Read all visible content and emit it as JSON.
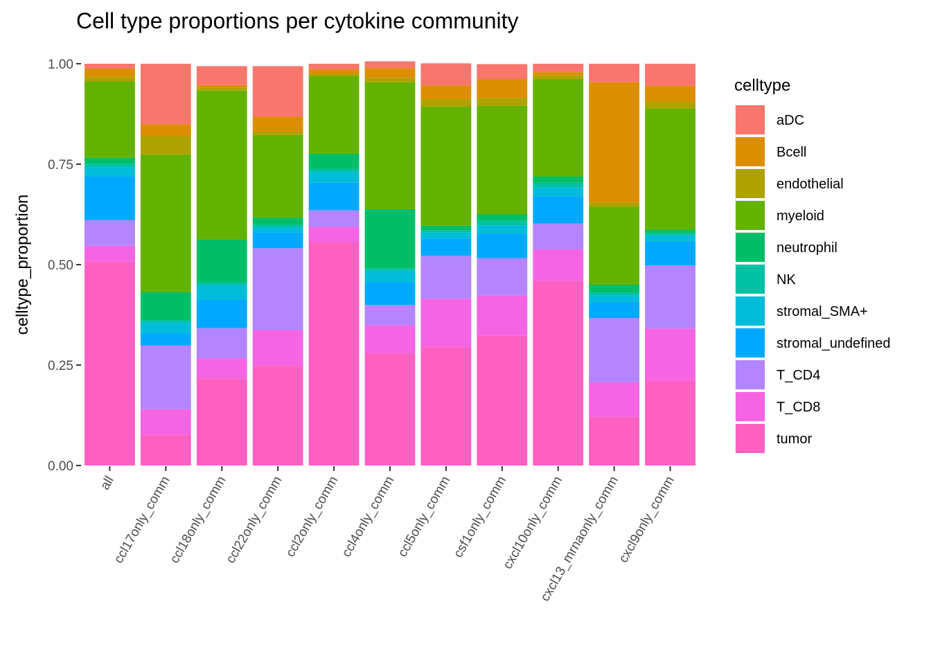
{
  "chart_data": {
    "type": "bar",
    "stacked": true,
    "title": "Cell type proportions per cytokine community",
    "xlabel": "",
    "ylabel": "celltype_proportion",
    "ylim": [
      0,
      1
    ],
    "yticks": [
      "0.00",
      "0.25",
      "0.50",
      "0.75",
      "1.00"
    ],
    "ytick_values": [
      0,
      0.25,
      0.5,
      0.75,
      1.0
    ],
    "grid": false,
    "legend_title": "celltype",
    "legend_position": "right",
    "categories": [
      "all",
      "ccl17only_comm",
      "ccl18only_comm",
      "ccl22only_comm",
      "ccl2only_comm",
      "ccl4only_comm",
      "ccl5only_comm",
      "csf1only_comm",
      "cxcl10only_comm",
      "cxcl13_mrnaonly_comm",
      "cxcl9only_comm"
    ],
    "series": [
      {
        "name": "tumor",
        "color": "#FF61C3",
        "values": [
          0.508,
          0.076,
          0.217,
          0.248,
          0.556,
          0.279,
          0.295,
          0.323,
          0.46,
          0.121,
          0.211
        ]
      },
      {
        "name": "T_CD8",
        "color": "#F564E3",
        "values": [
          0.039,
          0.064,
          0.05,
          0.089,
          0.038,
          0.07,
          0.12,
          0.1,
          0.078,
          0.086,
          0.13
        ]
      },
      {
        "name": "T_CD4",
        "color": "#B385FF",
        "values": [
          0.064,
          0.159,
          0.075,
          0.204,
          0.041,
          0.051,
          0.107,
          0.093,
          0.064,
          0.16,
          0.157
        ]
      },
      {
        "name": "stromal_undefined",
        "color": "#00A9FF",
        "values": [
          0.108,
          0.031,
          0.071,
          0.039,
          0.069,
          0.056,
          0.043,
          0.061,
          0.068,
          0.039,
          0.059
        ]
      },
      {
        "name": "stromal_SMA+",
        "color": "#00BCD8",
        "values": [
          0.024,
          0.025,
          0.036,
          0.013,
          0.026,
          0.029,
          0.015,
          0.021,
          0.022,
          0.018,
          0.016
        ]
      },
      {
        "name": "NK",
        "color": "#00C1A3",
        "values": [
          0.008,
          0.007,
          0.007,
          0.006,
          0.008,
          0.006,
          0.006,
          0.011,
          0.012,
          0.007,
          0.005
        ]
      },
      {
        "name": "neutrophil",
        "color": "#00BE67",
        "values": [
          0.015,
          0.069,
          0.106,
          0.018,
          0.038,
          0.147,
          0.011,
          0.016,
          0.015,
          0.019,
          0.009
        ]
      },
      {
        "name": "myeloid",
        "color": "#64B200",
        "values": [
          0.19,
          0.343,
          0.371,
          0.206,
          0.193,
          0.316,
          0.296,
          0.27,
          0.243,
          0.194,
          0.302
        ]
      },
      {
        "name": "endothelial",
        "color": "#AEA200",
        "values": [
          0.011,
          0.045,
          0.008,
          0.008,
          0.006,
          0.011,
          0.019,
          0.02,
          0.009,
          0.011,
          0.017
        ]
      },
      {
        "name": "Bcell",
        "color": "#DB8E00",
        "values": [
          0.021,
          0.03,
          0.006,
          0.037,
          0.011,
          0.024,
          0.034,
          0.047,
          0.008,
          0.299,
          0.039
        ]
      },
      {
        "name": "aDC",
        "color": "#F8766D",
        "values": [
          0.012,
          0.151,
          0.047,
          0.126,
          0.014,
          0.017,
          0.055,
          0.037,
          0.021,
          0.046,
          0.055
        ]
      }
    ],
    "legend_order": [
      "aDC",
      "Bcell",
      "endothelial",
      "myeloid",
      "neutrophil",
      "NK",
      "stromal_SMA+",
      "stromal_undefined",
      "T_CD4",
      "T_CD8",
      "tumor"
    ]
  }
}
